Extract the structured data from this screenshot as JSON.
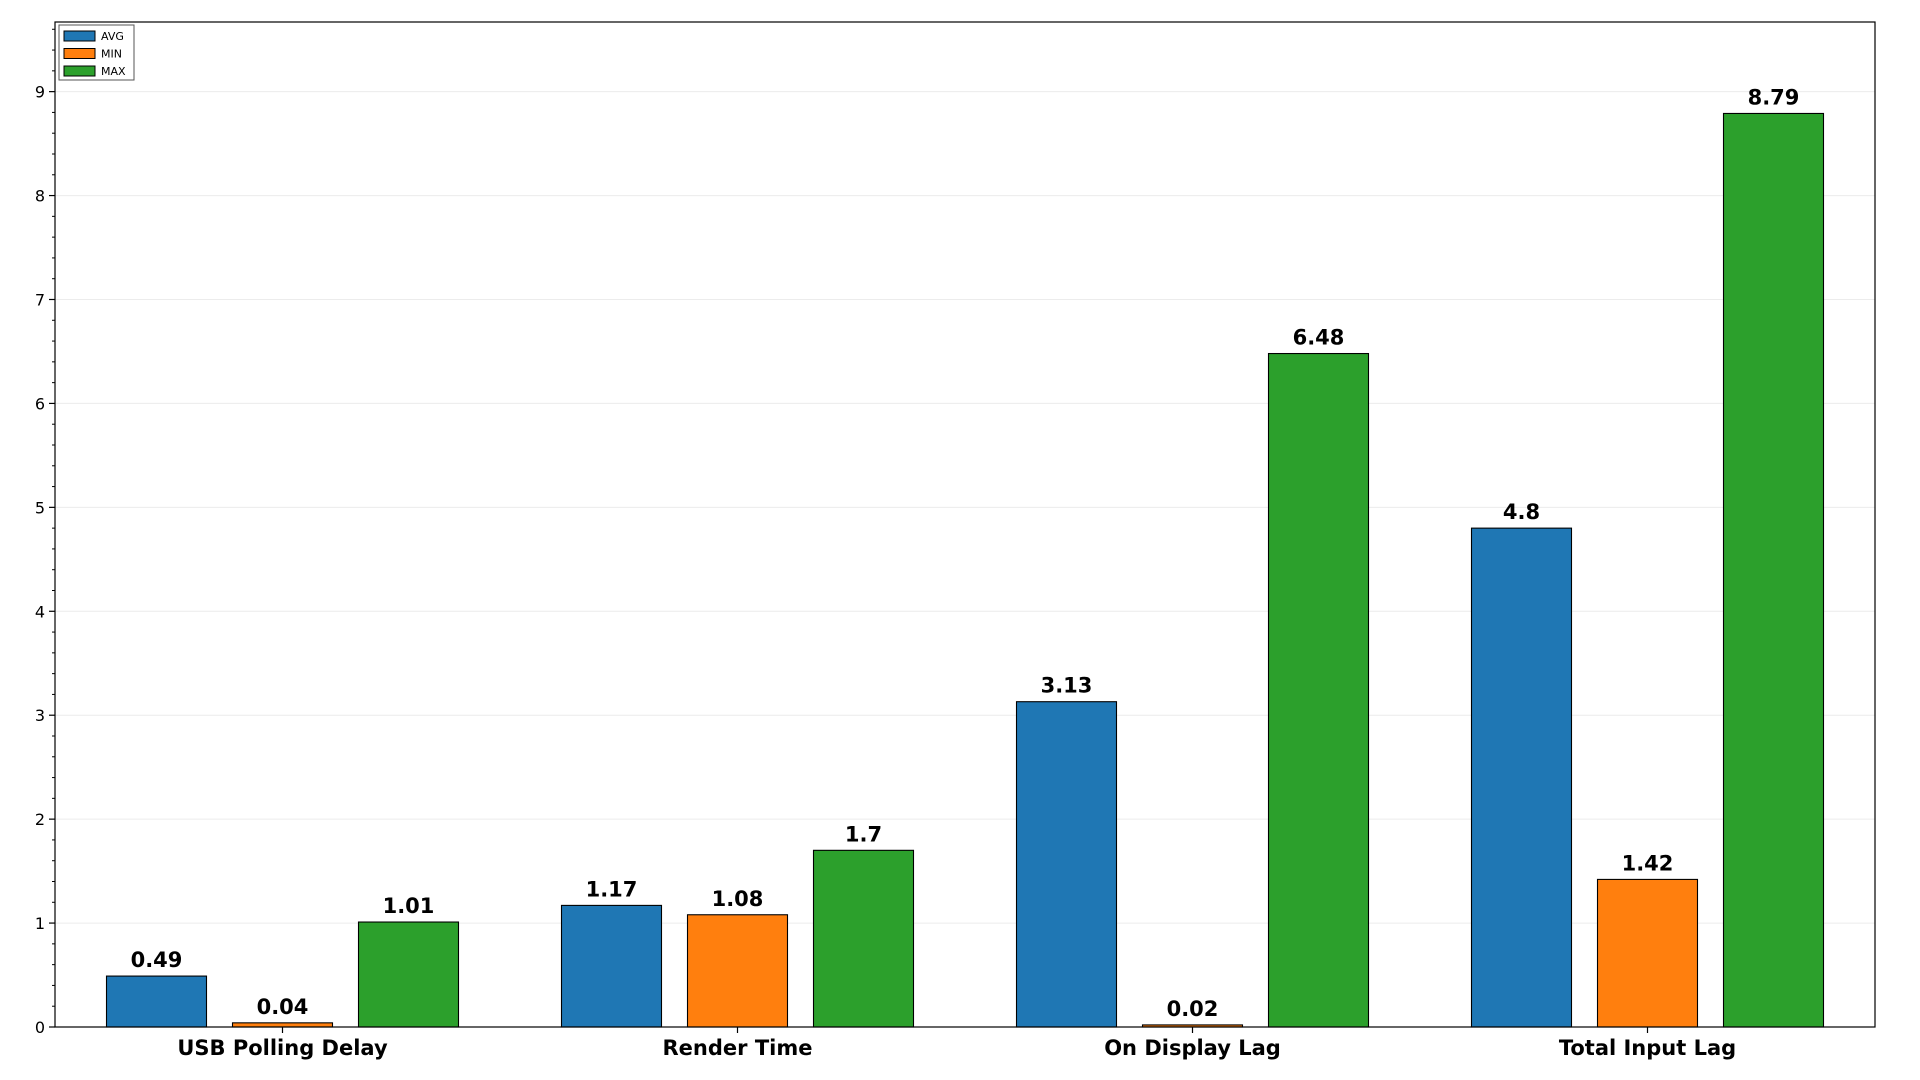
{
  "chart_data": {
    "type": "bar",
    "title": "",
    "xlabel": "",
    "ylabel": "",
    "categories": [
      "USB Polling Delay",
      "Render Time",
      "On Display Lag",
      "Total Input Lag"
    ],
    "series": [
      {
        "name": "AVG",
        "color": "#1f77b4",
        "values": [
          0.49,
          1.17,
          3.13,
          4.8
        ]
      },
      {
        "name": "MIN",
        "color": "#ff7f0e",
        "values": [
          0.04,
          1.08,
          0.02,
          1.42
        ]
      },
      {
        "name": "MAX",
        "color": "#2ca02c",
        "values": [
          1.01,
          1.7,
          6.48,
          8.79
        ]
      }
    ],
    "ylim": [
      0,
      9.67
    ],
    "yticks": [
      0,
      1,
      2,
      3,
      4,
      5,
      6,
      7,
      8,
      9
    ],
    "ytick_labels": [
      "0",
      "1",
      "2",
      "3",
      "4",
      "5",
      "6",
      "7",
      "8",
      "9"
    ],
    "data_labels": [
      [
        "0.49",
        "1.17",
        "3.13",
        "4.8"
      ],
      [
        "0.04",
        "1.08",
        "0.02",
        "1.42"
      ],
      [
        "1.01",
        "1.7",
        "6.48",
        "8.79"
      ]
    ],
    "grid": true,
    "legend_position": "top-left"
  }
}
